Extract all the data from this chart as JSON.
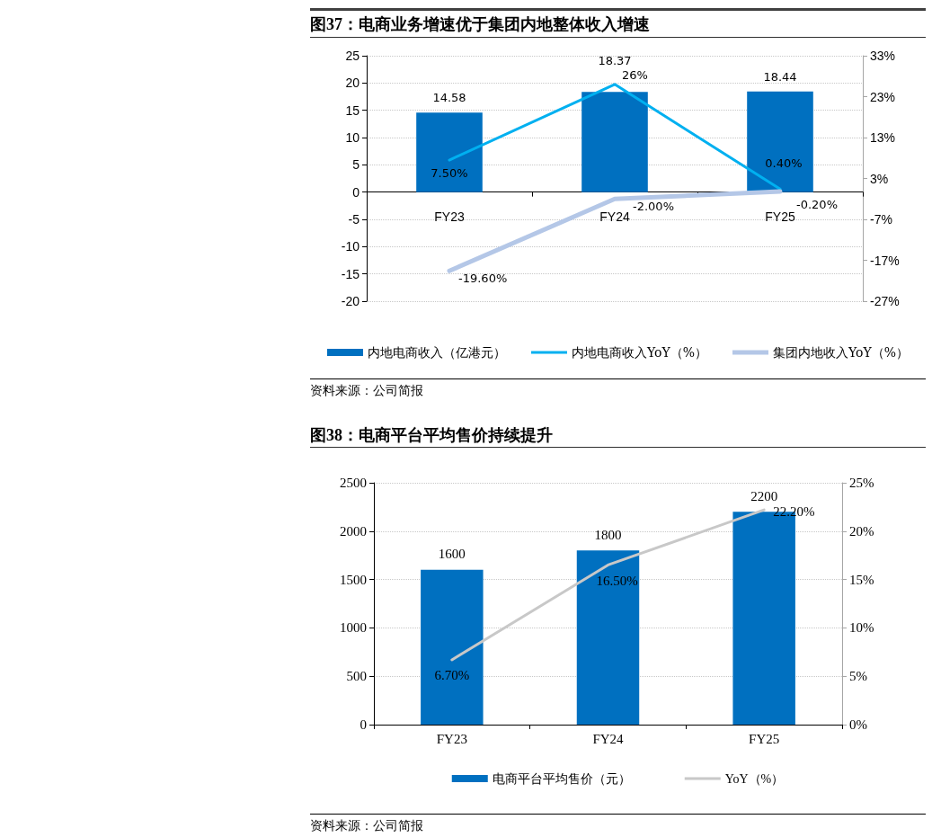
{
  "chart_data": [
    {
      "type": "bar",
      "title": "图37：电商业务增速优于集团内地整体收入增速",
      "annotations": [
        "资料来源：公司简报"
      ],
      "categories": [
        "FY23",
        "FY24",
        "FY25"
      ],
      "series": [
        {
          "name": "内地电商收入（亿港元）",
          "color": "#0070c0",
          "values": [
            14.58,
            18.37,
            18.44
          ],
          "value_labels": [
            "14.58",
            "18.37",
            "18.44"
          ]
        },
        {
          "name": "内地电商收入YoY（%）",
          "type": "line",
          "axis": "y2",
          "color": "#00b0f0",
          "values": [
            7.5,
            26,
            0.4
          ],
          "value_labels": [
            "7.50%",
            "26%",
            "0.40%"
          ]
        },
        {
          "name": "集团内地收入YoY（%）",
          "type": "line",
          "axis": "y2",
          "color": "#b4c7e7",
          "values": [
            -19.6,
            -2.0,
            -0.2
          ],
          "value_labels": [
            "-19.60%",
            "-2.00%",
            "-0.20%"
          ]
        }
      ],
      "ylim": [
        -20,
        25
      ],
      "yticks": [
        -20,
        -15,
        -10,
        -5,
        0,
        5,
        10,
        15,
        20,
        25
      ],
      "y2lim": [
        -27,
        33
      ],
      "y2ticks": [
        {
          "value": -27,
          "label": "-27%"
        },
        {
          "value": -17,
          "label": "-17%"
        },
        {
          "value": -7,
          "label": "-7%"
        },
        {
          "value": 3,
          "label": "3%"
        },
        {
          "value": 13,
          "label": "13%"
        },
        {
          "value": 23,
          "label": "23%"
        },
        {
          "value": 33,
          "label": "33%"
        }
      ],
      "grid": "y",
      "legend": "bottom",
      "marker": "none"
    },
    {
      "type": "bar",
      "title": "图38：电商平台平均售价持续提升",
      "annotations": [
        "资料来源：公司简报"
      ],
      "categories": [
        "FY23",
        "FY24",
        "FY25"
      ],
      "series": [
        {
          "name": "电商平台平均售价（元）",
          "color": "#0070c0",
          "values": [
            1600,
            1800,
            2200
          ],
          "value_labels": [
            "1600",
            "1800",
            "2200"
          ]
        },
        {
          "name": "YoY（%）",
          "type": "line",
          "axis": "y2",
          "color": "#c8c8c8",
          "values": [
            6.7,
            16.5,
            22.2
          ],
          "value_labels": [
            "6.70%",
            "16.50%",
            "22.20%"
          ]
        }
      ],
      "ylim": [
        0,
        2500
      ],
      "yticks": [
        0,
        500,
        1000,
        1500,
        2000,
        2500
      ],
      "y2lim": [
        0,
        25
      ],
      "y2ticks": [
        {
          "value": 0,
          "label": "0%"
        },
        {
          "value": 5,
          "label": "5%"
        },
        {
          "value": 10,
          "label": "10%"
        },
        {
          "value": 15,
          "label": "15%"
        },
        {
          "value": 20,
          "label": "20%"
        },
        {
          "value": 25,
          "label": "25%"
        }
      ],
      "grid": "y",
      "legend": "bottom",
      "marker": "none"
    }
  ]
}
